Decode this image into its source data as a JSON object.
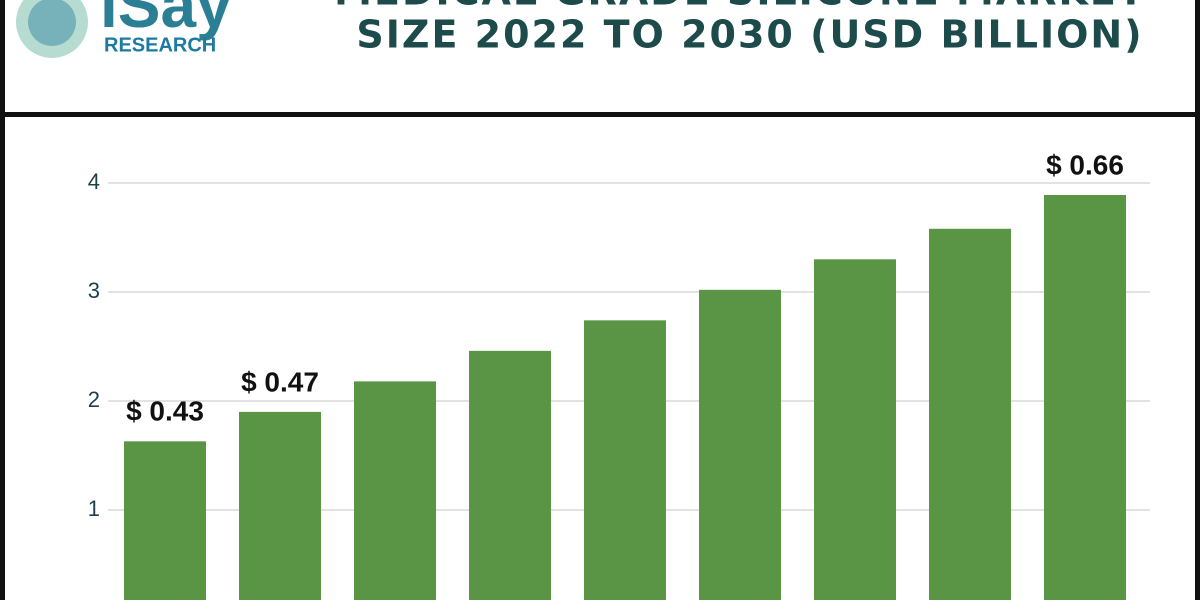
{
  "logo": {
    "name": "iSay",
    "subtitle": "RESEARCH"
  },
  "chart_data": {
    "type": "bar",
    "title": [
      "MEDICAL GRADE SILICONE MARKET",
      "SIZE 2022 TO 2030 (USD BILLION)"
    ],
    "categories": [
      null,
      null,
      null,
      null,
      null,
      null,
      null,
      null,
      null
    ],
    "values": [
      1.63,
      1.9,
      2.18,
      2.46,
      2.74,
      3.02,
      3.3,
      3.58,
      3.89
    ],
    "annotations": [
      "$ 0.43",
      "$ 0.47",
      "$ 0.66"
    ],
    "color": "#5a9445",
    "ylim": [
      0,
      4.2
    ],
    "yticks": [
      1,
      2,
      3,
      4
    ],
    "grid": true
  }
}
